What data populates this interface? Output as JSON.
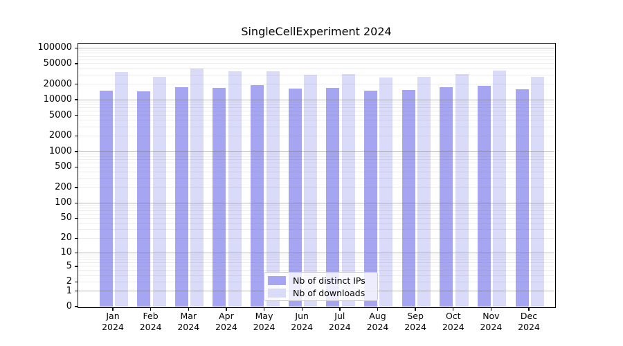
{
  "title": "SingleCellExperiment 2024",
  "chart_data": {
    "type": "bar",
    "title": "SingleCellExperiment 2024",
    "categories": [
      {
        "line1": "Jan",
        "line2": "2024"
      },
      {
        "line1": "Feb",
        "line2": "2024"
      },
      {
        "line1": "Mar",
        "line2": "2024"
      },
      {
        "line1": "Apr",
        "line2": "2024"
      },
      {
        "line1": "May",
        "line2": "2024"
      },
      {
        "line1": "Jun",
        "line2": "2024"
      },
      {
        "line1": "Jul",
        "line2": "2024"
      },
      {
        "line1": "Aug",
        "line2": "2024"
      },
      {
        "line1": "Sep",
        "line2": "2024"
      },
      {
        "line1": "Oct",
        "line2": "2024"
      },
      {
        "line1": "Nov",
        "line2": "2024"
      },
      {
        "line1": "Dec",
        "line2": "2024"
      }
    ],
    "series": [
      {
        "name": "Nb of distinct IPs",
        "color": "#a5a5f2",
        "values": [
          15200,
          14400,
          17800,
          17000,
          19000,
          16500,
          16900,
          15200,
          15500,
          17300,
          18900,
          16000
        ]
      },
      {
        "name": "Nb of downloads",
        "color": "#dadaf9",
        "values": [
          34900,
          28000,
          40700,
          35300,
          35400,
          30800,
          31300,
          27100,
          27900,
          32000,
          36800,
          28100
        ]
      }
    ],
    "yscale": "log10(1+x)",
    "ylim": [
      0,
      130000
    ],
    "ytick_values": [
      100000,
      50000,
      20000,
      10000,
      5000,
      2000,
      1000,
      500,
      200,
      100,
      50,
      20,
      10,
      5,
      2,
      1,
      0
    ],
    "grid": {
      "major_at": "powers of 10",
      "minor_at": "2-9 multiples per decade"
    },
    "legend_position": "inside bottom center"
  }
}
